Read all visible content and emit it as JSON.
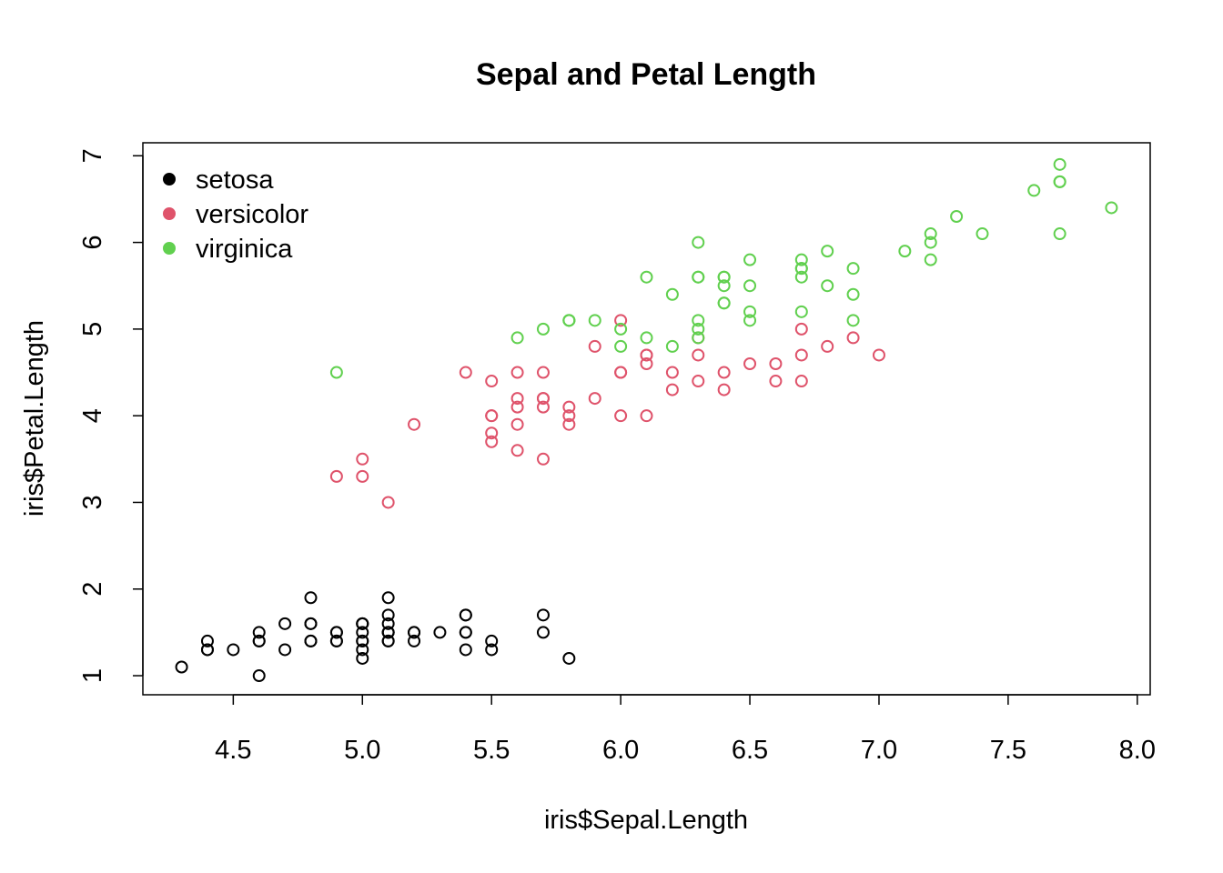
{
  "chart_data": {
    "type": "scatter",
    "title": "Sepal and Petal Length",
    "xlabel": "iris$Sepal.Length",
    "ylabel": "iris$Petal.Length",
    "xlim": [
      4.15,
      8.05
    ],
    "ylim": [
      0.78,
      7.15
    ],
    "xticks": [
      "4.5",
      "5.0",
      "5.5",
      "6.0",
      "6.5",
      "7.0",
      "7.5",
      "8.0"
    ],
    "xtick_values": [
      4.5,
      5.0,
      5.5,
      6.0,
      6.5,
      7.0,
      7.5,
      8.0
    ],
    "yticks": [
      "1",
      "2",
      "3",
      "4",
      "5",
      "6",
      "7"
    ],
    "ytick_values": [
      1,
      2,
      3,
      4,
      5,
      6,
      7
    ],
    "grid": false,
    "legend_position": "top-left",
    "marker": "open-circle",
    "series": [
      {
        "name": "setosa",
        "color": "#000000",
        "points": [
          [
            5.1,
            1.4
          ],
          [
            4.9,
            1.4
          ],
          [
            4.7,
            1.3
          ],
          [
            4.6,
            1.5
          ],
          [
            5.0,
            1.4
          ],
          [
            5.4,
            1.7
          ],
          [
            4.6,
            1.4
          ],
          [
            5.0,
            1.5
          ],
          [
            4.4,
            1.4
          ],
          [
            4.9,
            1.5
          ],
          [
            5.4,
            1.5
          ],
          [
            4.8,
            1.6
          ],
          [
            4.8,
            1.4
          ],
          [
            4.3,
            1.1
          ],
          [
            5.8,
            1.2
          ],
          [
            5.7,
            1.5
          ],
          [
            5.4,
            1.3
          ],
          [
            5.1,
            1.4
          ],
          [
            5.7,
            1.7
          ],
          [
            5.1,
            1.5
          ],
          [
            5.4,
            1.7
          ],
          [
            5.1,
            1.5
          ],
          [
            4.6,
            1.0
          ],
          [
            5.1,
            1.7
          ],
          [
            4.8,
            1.9
          ],
          [
            5.0,
            1.6
          ],
          [
            5.0,
            1.6
          ],
          [
            5.2,
            1.5
          ],
          [
            5.2,
            1.4
          ],
          [
            4.7,
            1.6
          ],
          [
            4.8,
            1.6
          ],
          [
            5.4,
            1.5
          ],
          [
            5.2,
            1.5
          ],
          [
            5.5,
            1.4
          ],
          [
            4.9,
            1.5
          ],
          [
            5.0,
            1.2
          ],
          [
            5.5,
            1.3
          ],
          [
            4.9,
            1.4
          ],
          [
            4.4,
            1.3
          ],
          [
            5.1,
            1.5
          ],
          [
            5.0,
            1.3
          ],
          [
            4.5,
            1.3
          ],
          [
            4.4,
            1.3
          ],
          [
            5.0,
            1.6
          ],
          [
            5.1,
            1.9
          ],
          [
            4.8,
            1.4
          ],
          [
            5.1,
            1.6
          ],
          [
            4.6,
            1.4
          ],
          [
            5.3,
            1.5
          ],
          [
            5.0,
            1.4
          ]
        ]
      },
      {
        "name": "versicolor",
        "color": "#DF536B",
        "points": [
          [
            7.0,
            4.7
          ],
          [
            6.4,
            4.5
          ],
          [
            6.9,
            4.9
          ],
          [
            5.5,
            4.0
          ],
          [
            6.5,
            4.6
          ],
          [
            5.7,
            4.5
          ],
          [
            6.3,
            4.7
          ],
          [
            4.9,
            3.3
          ],
          [
            6.6,
            4.6
          ],
          [
            5.2,
            3.9
          ],
          [
            5.0,
            3.5
          ],
          [
            5.9,
            4.2
          ],
          [
            6.0,
            4.0
          ],
          [
            6.1,
            4.7
          ],
          [
            5.6,
            3.6
          ],
          [
            6.7,
            4.4
          ],
          [
            5.6,
            4.5
          ],
          [
            5.8,
            4.1
          ],
          [
            6.2,
            4.5
          ],
          [
            5.6,
            3.9
          ],
          [
            5.9,
            4.8
          ],
          [
            6.1,
            4.0
          ],
          [
            6.3,
            4.9
          ],
          [
            6.1,
            4.7
          ],
          [
            6.4,
            4.3
          ],
          [
            6.6,
            4.4
          ],
          [
            6.8,
            4.8
          ],
          [
            6.7,
            5.0
          ],
          [
            6.0,
            4.5
          ],
          [
            5.7,
            3.5
          ],
          [
            5.5,
            3.8
          ],
          [
            5.5,
            3.7
          ],
          [
            5.8,
            3.9
          ],
          [
            6.0,
            5.1
          ],
          [
            5.4,
            4.5
          ],
          [
            6.0,
            4.5
          ],
          [
            6.7,
            4.7
          ],
          [
            6.3,
            4.4
          ],
          [
            5.6,
            4.1
          ],
          [
            5.5,
            4.0
          ],
          [
            5.5,
            4.4
          ],
          [
            6.1,
            4.6
          ],
          [
            5.8,
            4.0
          ],
          [
            5.0,
            3.3
          ],
          [
            5.6,
            4.2
          ],
          [
            5.7,
            4.2
          ],
          [
            5.7,
            4.2
          ],
          [
            6.2,
            4.3
          ],
          [
            5.1,
            3.0
          ],
          [
            5.7,
            4.1
          ]
        ]
      },
      {
        "name": "virginica",
        "color": "#61D04F",
        "points": [
          [
            6.3,
            6.0
          ],
          [
            5.8,
            5.1
          ],
          [
            7.1,
            5.9
          ],
          [
            6.3,
            5.6
          ],
          [
            6.5,
            5.8
          ],
          [
            7.6,
            6.6
          ],
          [
            4.9,
            4.5
          ],
          [
            7.3,
            6.3
          ],
          [
            6.7,
            5.8
          ],
          [
            7.2,
            6.1
          ],
          [
            6.5,
            5.1
          ],
          [
            6.4,
            5.3
          ],
          [
            6.8,
            5.5
          ],
          [
            5.7,
            5.0
          ],
          [
            5.8,
            5.1
          ],
          [
            6.4,
            5.3
          ],
          [
            6.5,
            5.5
          ],
          [
            7.7,
            6.7
          ],
          [
            7.7,
            6.9
          ],
          [
            6.0,
            5.0
          ],
          [
            6.9,
            5.7
          ],
          [
            5.6,
            4.9
          ],
          [
            7.7,
            6.7
          ],
          [
            6.3,
            4.9
          ],
          [
            6.7,
            5.7
          ],
          [
            7.2,
            6.0
          ],
          [
            6.2,
            4.8
          ],
          [
            6.1,
            4.9
          ],
          [
            6.4,
            5.6
          ],
          [
            7.2,
            5.8
          ],
          [
            7.4,
            6.1
          ],
          [
            7.9,
            6.4
          ],
          [
            6.4,
            5.6
          ],
          [
            6.3,
            5.1
          ],
          [
            6.1,
            5.6
          ],
          [
            7.7,
            6.1
          ],
          [
            6.3,
            5.6
          ],
          [
            6.4,
            5.5
          ],
          [
            6.0,
            4.8
          ],
          [
            6.9,
            5.4
          ],
          [
            6.7,
            5.6
          ],
          [
            6.9,
            5.1
          ],
          [
            5.8,
            5.1
          ],
          [
            6.8,
            5.9
          ],
          [
            6.7,
            5.7
          ],
          [
            6.7,
            5.2
          ],
          [
            6.3,
            5.0
          ],
          [
            6.5,
            5.2
          ],
          [
            6.2,
            5.4
          ],
          [
            5.9,
            5.1
          ]
        ]
      }
    ]
  }
}
